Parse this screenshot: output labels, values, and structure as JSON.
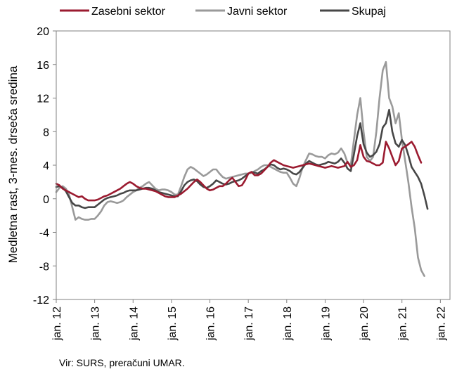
{
  "chart_data": {
    "type": "line",
    "ylabel": "Medletna rast, 3-mes. drseča sredina",
    "ylim": [
      -12,
      20
    ],
    "yticks": [
      20,
      16,
      12,
      8,
      4,
      0,
      -4,
      -8,
      -12
    ],
    "ytick_labels": [
      "20",
      "16",
      "12",
      "8",
      "4",
      "0",
      "-4",
      "-8",
      "-12"
    ],
    "xlim": [
      0,
      123
    ],
    "x_tick_labels": [
      "jan. 12",
      "jan. 13",
      "jan. 14",
      "jan. 15",
      "jan. 16",
      "jan. 17",
      "jan. 18",
      "jan. 19",
      "jan. 20",
      "jan. 21",
      "jan. 22"
    ],
    "grid": false,
    "legend_position": "top",
    "series": [
      {
        "name": "Zasebni sektor",
        "color": "#9b1b30",
        "values": [
          1.8,
          1.6,
          1.2,
          1,
          0.8,
          0.6,
          0.4,
          0.2,
          0.3,
          0,
          -0.2,
          -0.2,
          -0.2,
          -0.1,
          0.1,
          0.3,
          0.4,
          0.6,
          0.8,
          1,
          1.2,
          1.5,
          1.8,
          2,
          1.8,
          1.5,
          1.3,
          1.2,
          1.2,
          1.1,
          1,
          0.9,
          0.7,
          0.5,
          0.3,
          0.2,
          0.2,
          0.2,
          0.4,
          0.6,
          0.9,
          1.2,
          1.6,
          2,
          2.3,
          2,
          1.6,
          1.2,
          1,
          1.1,
          1.3,
          1.5,
          1.5,
          1.8,
          2.2,
          2.5,
          2,
          1.5,
          1.6,
          2.2,
          3,
          3.2,
          2.8,
          2.8,
          3,
          3.4,
          3.8,
          4.3,
          4.6,
          4.4,
          4.2,
          4,
          3.9,
          3.8,
          3.7,
          3.8,
          3.9,
          4,
          4.1,
          4.2,
          4.1,
          4,
          3.9,
          3.8,
          3.7,
          3.8,
          3.9,
          3.8,
          3.7,
          3.8,
          3.9,
          4.4,
          3.8,
          4,
          4.6,
          6.4,
          5,
          4.5,
          4.4,
          4.2,
          4,
          4,
          4.3,
          6.8,
          6,
          5,
          4,
          4.5,
          6,
          6.2,
          6.5,
          6.8,
          6.2,
          5.2,
          4.3
        ]
      },
      {
        "name": "Javni sektor",
        "color": "#9a9a9a",
        "values": [
          0.8,
          1.3,
          1.5,
          1.2,
          0.5,
          -1,
          -2.5,
          -2.2,
          -2.4,
          -2.5,
          -2.5,
          -2.4,
          -2.4,
          -2,
          -1.5,
          -0.8,
          -0.4,
          -0.3,
          -0.4,
          -0.5,
          -0.4,
          -0.2,
          0.2,
          0.5,
          0.8,
          1,
          1.3,
          1.5,
          1.8,
          2,
          1.6,
          1.2,
          1,
          1.1,
          1.1,
          1,
          0.8,
          0.5,
          0.5,
          1.5,
          2.6,
          3.5,
          3.8,
          3.6,
          3.3,
          3,
          2.7,
          2.9,
          3.2,
          3.5,
          3.5,
          3,
          2.6,
          2.4,
          2.5,
          2.6,
          2.7,
          2.8,
          2.9,
          3,
          3,
          3.1,
          3.3,
          3.5,
          3.8,
          4,
          4,
          3.8,
          3.6,
          3.4,
          3.2,
          3.1,
          3.1,
          2.5,
          1.8,
          1.5,
          2.5,
          3.8,
          4.6,
          5.4,
          5.3,
          5.1,
          5,
          5,
          4.8,
          5.2,
          5.4,
          5.3,
          5.5,
          6,
          5.4,
          4.3,
          4,
          7,
          10,
          12,
          8,
          5,
          4.5,
          5,
          8,
          12,
          15.3,
          16.3,
          12,
          11,
          9,
          10.2,
          7,
          4.5,
          2,
          -1,
          -3.5,
          -7,
          -8.5,
          -9.2
        ]
      },
      {
        "name": "Skupaj",
        "color": "#474747",
        "values": [
          1.4,
          1.5,
          1.3,
          0.9,
          0.2,
          -0.5,
          -0.8,
          -0.8,
          -1,
          -1.1,
          -1,
          -1,
          -1,
          -0.7,
          -0.4,
          -0.1,
          0.1,
          0.2,
          0.3,
          0.4,
          0.6,
          0.7,
          0.9,
          1,
          1,
          1,
          1.1,
          1.2,
          1.3,
          1.3,
          1.2,
          1,
          0.8,
          0.7,
          0.6,
          0.5,
          0.4,
          0.3,
          0.3,
          0.9,
          1.6,
          2,
          2.2,
          2.3,
          2.1,
          1.7,
          1.4,
          1.3,
          1.5,
          1.8,
          2.2,
          2,
          1.8,
          1.7,
          1.8,
          2,
          2.1,
          2.2,
          2.4,
          2.7,
          3,
          3.2,
          3.1,
          3,
          3.3,
          3.5,
          3.8,
          4.1,
          4,
          3.7,
          3.5,
          3.6,
          3.5,
          3.3,
          3,
          2.9,
          3.2,
          3.7,
          4.2,
          4.5,
          4.3,
          4.1,
          4,
          4.1,
          4.2,
          4.4,
          4.3,
          4.2,
          4.4,
          4.8,
          4.3,
          3.6,
          3.3,
          5.3,
          7.5,
          9,
          6.5,
          5.5,
          5,
          5.2,
          5.6,
          6.5,
          8.5,
          9,
          10.6,
          8,
          6.6,
          6.2,
          7,
          6.4,
          5.2,
          3.8,
          3.2,
          2.6,
          1.8,
          0.4,
          -1.2
        ]
      }
    ]
  },
  "source_note": "Vir: SURS, preračuni UMAR."
}
